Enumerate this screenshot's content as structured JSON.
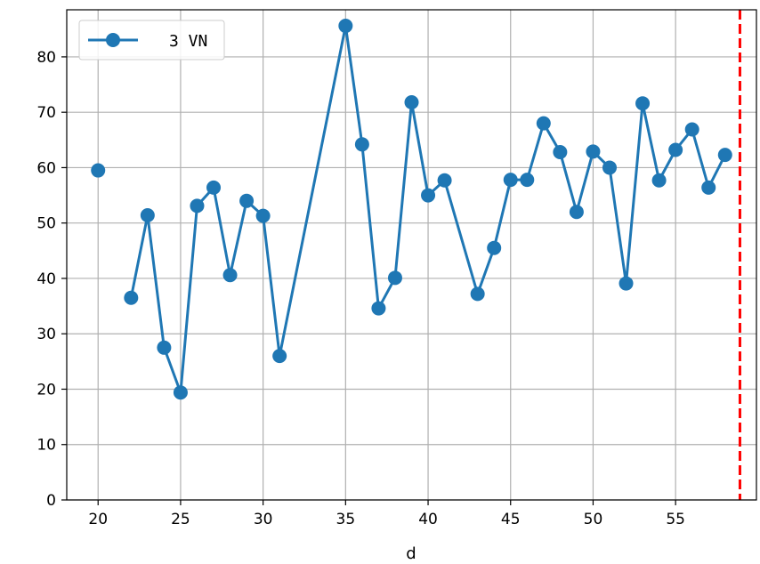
{
  "chart_data": {
    "type": "line",
    "xlabel": "d",
    "ylabel": "",
    "xlim": [
      18.1,
      59.9
    ],
    "ylim": [
      0,
      88.5
    ],
    "xticks": [
      "20",
      "25",
      "30",
      "35",
      "40",
      "45",
      "50",
      "55"
    ],
    "yticks": [
      "0",
      "10",
      "20",
      "30",
      "40",
      "50",
      "60",
      "70",
      "80"
    ],
    "grid": true,
    "legend_position": "top-left",
    "series": [
      {
        "name": "3 VN",
        "color": "#1f77b4",
        "marker": "circle",
        "x": [
          20,
          22,
          23,
          24,
          25,
          26,
          27,
          28,
          29,
          30,
          31,
          35,
          36,
          37,
          38,
          39,
          40,
          41,
          43,
          44,
          45,
          46,
          47,
          48,
          49,
          50,
          51,
          52,
          53,
          54,
          55,
          56,
          57,
          58
        ],
        "y": [
          59.5,
          36.5,
          51.4,
          27.5,
          19.4,
          53.1,
          56.4,
          40.6,
          54.0,
          51.3,
          26.0,
          85.6,
          64.2,
          34.6,
          40.1,
          71.8,
          55.0,
          57.7,
          37.2,
          45.5,
          57.8,
          57.8,
          68.0,
          62.8,
          52.0,
          62.9,
          60.0,
          39.1,
          71.6,
          57.7,
          63.2,
          66.9,
          56.4,
          62.3
        ]
      }
    ],
    "reference_line": {
      "orientation": "vertical",
      "x": 58.9,
      "color": "#ff0000",
      "style": "dashed"
    }
  }
}
